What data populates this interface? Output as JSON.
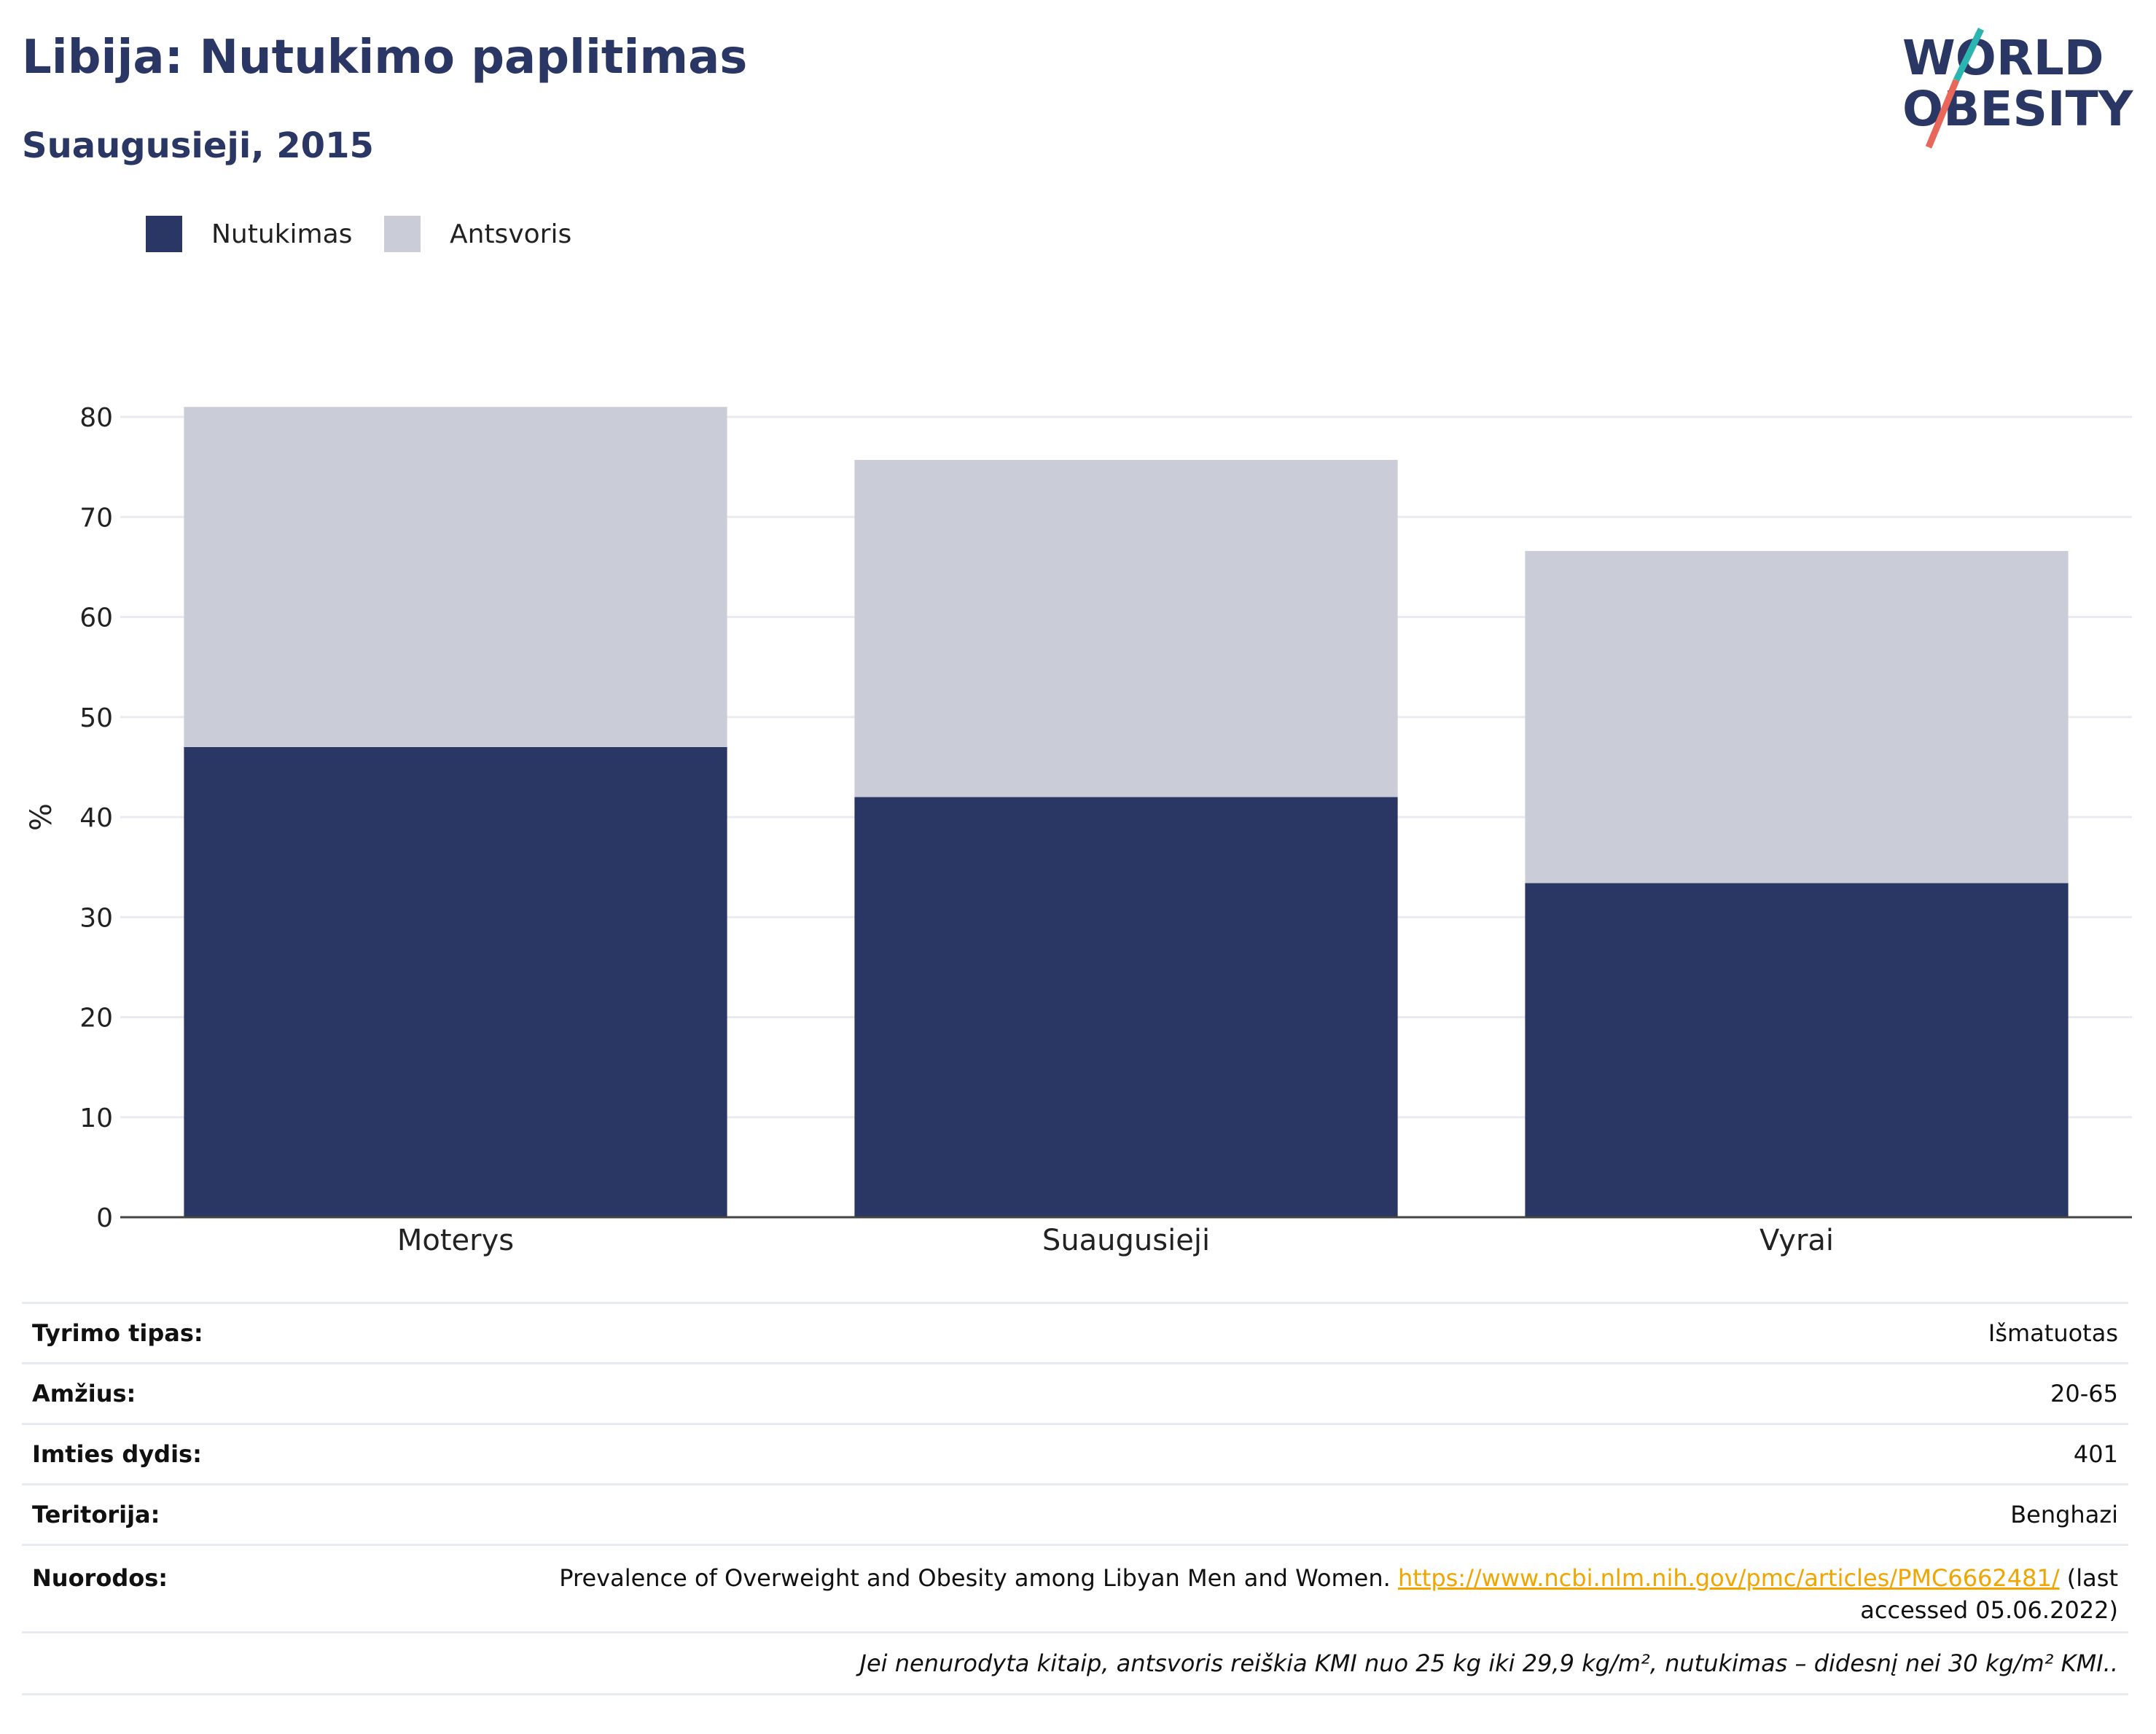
{
  "header": {
    "title": "Libija: Nutukimo paplitimas",
    "subtitle": "Suaugusieji, 2015"
  },
  "logo": {
    "line1": "WORLD",
    "line2": "OBESITY"
  },
  "colors": {
    "obesity": "#2a3663",
    "overweight": "#caccd8",
    "accent_teal": "#2bb5b0",
    "accent_red": "#e8675a"
  },
  "chart_data": {
    "type": "bar",
    "stacked": true,
    "categories": [
      "Moterys",
      "Suaugusieji",
      "Vyrai"
    ],
    "series": [
      {
        "name": "Nutukimas",
        "values": [
          47.0,
          42.0,
          33.4
        ]
      },
      {
        "name": "Antsvoris",
        "values": [
          34.0,
          33.7,
          33.2
        ]
      }
    ],
    "ylabel": "%",
    "ylim": [
      0,
      80
    ],
    "yticks": [
      0,
      10,
      20,
      30,
      40,
      50,
      60,
      70,
      80
    ],
    "legend": "top-left",
    "grid": true
  },
  "info": {
    "rows": [
      {
        "key": "Tyrimo tipas:",
        "value": "Išmatuotas"
      },
      {
        "key": "Amžius:",
        "value": "20-65"
      },
      {
        "key": "Imties dydis:",
        "value": "401"
      },
      {
        "key": "Teritorija:",
        "value": "Benghazi"
      }
    ],
    "references": {
      "key": "Nuorodos:",
      "text_before": "Prevalence of Overweight and Obesity among Libyan Men and Women. ",
      "link": "https://www.ncbi.nlm.nih.gov/pmc/articles/PMC6662481/",
      "text_after1": " (last",
      "text_after2": "accessed 05.06.2022)"
    },
    "note": "Jei nenurodyta kitaip, antsvoris reiškia KMI nuo 25 kg iki 29,9 kg/m², nutukimas – didesnį nei 30 kg/m² KMI.."
  }
}
